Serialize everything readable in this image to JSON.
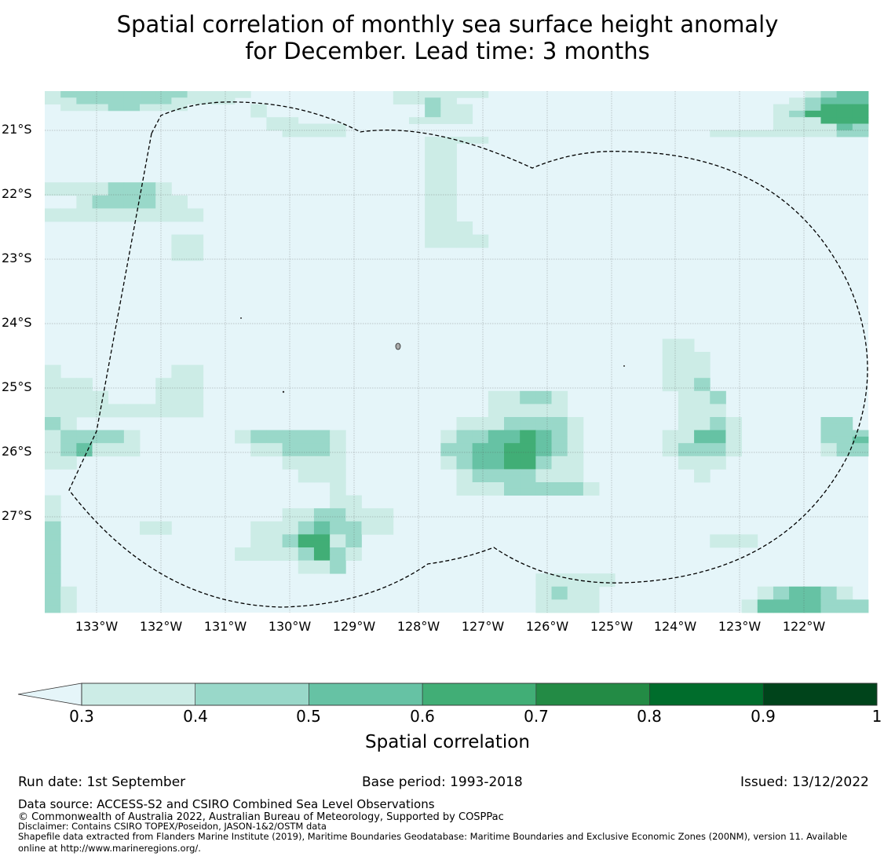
{
  "title": {
    "line1": "Spatial correlation of monthly sea surface height anomaly",
    "line2": "for December. Lead time: 3 months"
  },
  "map": {
    "lat_labels": [
      "21°S",
      "22°S",
      "23°S",
      "24°S",
      "25°S",
      "26°S",
      "27°S"
    ],
    "lon_labels": [
      "133°W",
      "132°W",
      "131°W",
      "130°W",
      "129°W",
      "128°W",
      "127°W",
      "126°W",
      "125°W",
      "124°W",
      "123°W",
      "122°W"
    ],
    "background_color": "#e5f5f9",
    "cell_colors": [
      "#e5f5f9",
      "#ccece6",
      "#99d8c9",
      "#66c2a4",
      "#41ae76",
      "#238b45",
      "#006d2c",
      "#00441b"
    ],
    "cells": [
      "cbbbbbcc22bbbcbbbbbbbbbbbbbbbbbbbbbbbbbbbbbbbbbbbcc",
      "bbbbbbbbbbbbbbbbbbbbbbbbbbbbbbbbbbbbbbbbbbbbbbbbbbb",
      "bbbbbbbbbbbbbbbbbbbbbbbbbbbbbbbbbbbbbbbbbbbbbbbbbbb"
    ],
    "correlation_grid": [
      "1222222221111000000000111111000000000000000000001233",
      "1122222211110000000000112100000000000000000000012333",
      "0111221110000100000000002110000000000000000000112444",
      "0000000000000100000000002110000000000000000000124444",
      "0000000000000011000000011110000000000000000000111444",
      "0000000000000011111000000000000000000000000000111132",
      "0000000000000001111000000000000000000000001111111122",
      "0000000000000000000000001111000000000000000000000000",
      "0000000000000000000000001100000000000000000000000000",
      "0000000000000000000000001100000000000000000000000000",
      "0000000000000000000000001100000000000000000000000000",
      "0000000000000000000000001100000000000000000000000000",
      "0000000000000000000000001100000000000000000000000000",
      "0000000000000000000000001100000000000000000000000000",
      "1111222100000000000000001100000000000000000000000000",
      "1111222100000000000000001100000000000000000000000000",
      "0012222110000000000000001100000000000000000000000000",
      "0012222110000000000000001100000000000000000000000000",
      "1111111111000000000000001100000000000000000000000000",
      "1111111111000000000000001100000000000000000000000000",
      "0000000000000000000000001110000000000000000000000000",
      "0000000000000000000000001110000000000000000000000000",
      "0000000011000000000000001111000000000000000000000000",
      "0000000011000000000000001111000000000000000000000000",
      "0000000011000000000000000000000000000000000000000000",
      "0000000011000000000000000000000000000000000000000000",
      "0000000000000000000000000000000000000000000000000000",
      "0000000000000000000000000000000000000000000000000000",
      "0000000000000000000000000000000000000000000000000000",
      "0000000000000000000000000000000000000000000000000000",
      "0000000000000000000000000000000000000000000000000000",
      "0000000000000000000000000000000000000000000000000000",
      "0000000000000000000000000000000000000000000000000000",
      "0000000000000000000000000000000000000000000000000000",
      "0000000000000000000000000000000000000000000000000000",
      "0000000000000000000000000000000000000000000000000000",
      "0000000000000000000000000000000000000000000000000000",
      "0000000000000000000000000000000000000000000000000000",
      "0000000000000000000000000000000000000001100000000000",
      "0000000000000000000000000000000000000001100000000000",
      "0000000000000000000000000000000000000001110000000000",
      "0000000000000000000000000000000000000001110000000000",
      "1000000011000000000000000000000000000001110000000000",
      "1000000011000000000000000000000000000001110000000000",
      "1110000111000000000000000000000000000001120000000000",
      "1110000111000000000000000000000000000001120000000000",
      "1111000111000000000000000000112210000000112000000000",
      "1111000111000000000000000000112210000000112000000000",
      "1111111111000000000000000000111110000000111000000000",
      "1111111111000000000000000000111110000000111000000000",
      "2100000000000000000000000011122221000000112100000220",
      "2100000000000000000000000011122221000000112100000220",
      "1222210000001222221000000122334321000001133100000222",
      "1222210000001222221000000122334321000001133100000223",
      "1231110000000112221000000223344321000001222100000122",
      "1231110000000112221000000223344321000001222100000122",
      "1100000000000001111000000123344211000000111000000000",
      "1100000000000001111000000123344211000000111000000000",
      "0000000000000000111000000012222111000000010000000000",
      "0000000000000000111000000012222111000000010000000000",
      "0000000000000000001000000011122222100000000000000000",
      "0000000000000000001000000011122222100000000000000000",
      "1000000000000000001100000000000000000000000000000000",
      "1000000000000000001100000000000000000000000000000000",
      "1000000000000001122111000000000000000000000000000000",
      "1000000000000001122111000000000000000000000000000000",
      "2000001100000111232211000000000000000000000000000000",
      "2000001100000111232211000000000000000000000000000000",
      "2000000000000112441200000000000000000000001110000000",
      "2000000000000112441200000000000000000000001110000000",
      "2000000000001111242100000000000000000000000000000000",
      "2000000000001111242100000000000000000000000000000000",
      "2000000000000000112000000000000000000000000000000000",
      "2000000000000000112000000000000000000000000000000000",
      "2000000000000000000000000000000111110000000000000000",
      "2000000000000000000000000000000111110000000000000000",
      "2100000000000000000000000000000121100000000001233210",
      "2100000000000000000000000000000121100000000001233210",
      "2100000000000000000000000000000111100000000013333222",
      "2100000000000000000000000000000111100000000013333222"
    ]
  },
  "colorbar": {
    "colors": [
      "#ccece6",
      "#99d8c9",
      "#66c2a4",
      "#41ae76",
      "#238b45",
      "#006d2c",
      "#00441b"
    ],
    "extend_color": "#e5f5f9",
    "ticks": [
      "0.3",
      "0.4",
      "0.5",
      "0.6",
      "0.7",
      "0.8",
      "0.9",
      "1"
    ],
    "label": "Spatial correlation"
  },
  "footer": {
    "run_date": "Run date: 1st September",
    "base_period": "Base period: 1993-2018",
    "issued": "Issued: 13/12/2022",
    "data_source": "Data source: ACCESS-S2 and CSIRO Combined Sea Level Observations",
    "copyright": "© Commonwealth of Australia 2022, Australian Bureau of Meteorology, Supported by COSPPac",
    "disclaimer": "Disclaimer: Contains CSIRO TOPEX/Poseidon, JASON-1&2/OSTM data",
    "shapefile_1": "Shapefile data extracted from Flanders Marine Institute (2019), Maritime Boundaries Geodatabase: Maritime Boundaries and Exclusive Economic Zones (200NM), version 11. Available",
    "shapefile_2": "online at http://www.marineregions.org/."
  }
}
